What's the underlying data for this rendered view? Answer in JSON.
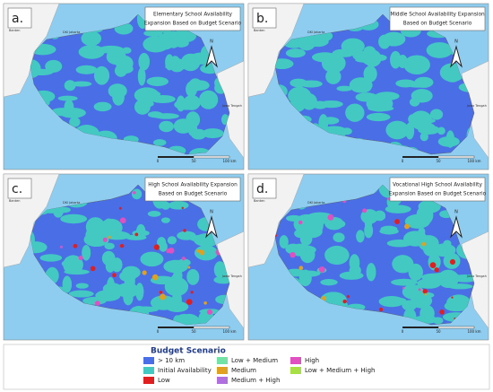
{
  "panels": [
    {
      "label": "a.",
      "title": [
        "Elementary School Availability",
        "Expansion Based on Budget Scenario"
      ]
    },
    {
      "label": "b.",
      "title": [
        "Middle School Availability Expansion",
        "Based on Budget Scenario"
      ]
    },
    {
      "label": "c.",
      "title": [
        "High School Availability Expansion",
        "Based on Budget Scenario"
      ]
    },
    {
      "label": "d.",
      "title": [
        "Vocational High School Availability",
        "Expansion Based on Budget Scenario"
      ]
    }
  ],
  "map_labels": {
    "banten": "Banten",
    "jakarta": "DKI Jakarta",
    "jawa_tengah": "Jawa Tengah",
    "north": "N"
  },
  "scale": [
    "0",
    "50",
    "100 km"
  ],
  "legend": {
    "title": "Budget Scenario",
    "items": [
      {
        "label": "> 10 km",
        "color": "#4a6ee6"
      },
      {
        "label": "Initial Availability",
        "color": "#43c9c2"
      },
      {
        "label": "Low",
        "color": "#e02020"
      },
      {
        "label": "Low + Medium",
        "color": "#72e3a4"
      },
      {
        "label": "Medium",
        "color": "#e0a020"
      },
      {
        "label": "Medium + High",
        "color": "#b070e0"
      },
      {
        "label": "High",
        "color": "#e050c0"
      },
      {
        "label": "Low + Medium + High",
        "color": "#a6e044"
      }
    ]
  }
}
